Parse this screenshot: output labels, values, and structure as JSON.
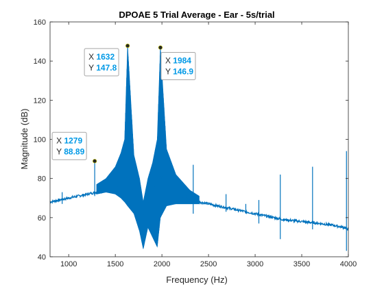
{
  "chart_data": {
    "type": "line",
    "title": "DPOAE 5 Trial Average - Ear - 5s/trial",
    "xlabel": "Frequency (Hz)",
    "ylabel": "Magnitude (dB)",
    "xlim": [
      800,
      4000
    ],
    "ylim": [
      40,
      160
    ],
    "xticks": [
      1000,
      1500,
      2000,
      2500,
      3000,
      3500,
      4000
    ],
    "yticks": [
      40,
      60,
      80,
      100,
      120,
      140,
      160
    ],
    "grid": false,
    "line_color": "#0072BD",
    "series": [
      {
        "baseline": {
          "x": [
            800,
            1000,
            1200,
            1400,
            1500,
            1600,
            1632,
            1700,
            1800,
            1900,
            1984,
            2100,
            2300,
            2500,
            2700,
            2900,
            3100,
            3300,
            3500,
            3700,
            3850,
            3950,
            4000
          ],
          "y": [
            68,
            70,
            72,
            74,
            76,
            80,
            82,
            74,
            60,
            73,
            82,
            75,
            69,
            67,
            65,
            63,
            61,
            59,
            58,
            57,
            56,
            55,
            54
          ]
        },
        "envelope_upper": {
          "x": [
            1300,
            1400,
            1500,
            1560,
            1600,
            1632,
            1700,
            1760,
            1800,
            1850,
            1900,
            1950,
            1984,
            2050,
            2150,
            2300,
            2400
          ],
          "y": [
            77,
            80,
            86,
            93,
            100,
            148,
            92,
            80,
            68,
            80,
            88,
            100,
            147,
            95,
            82,
            74,
            71
          ]
        },
        "envelope_lower": {
          "x": [
            1300,
            1400,
            1500,
            1560,
            1600,
            1632,
            1700,
            1760,
            1800,
            1850,
            1900,
            1950,
            1984,
            2050,
            2150,
            2300,
            2400
          ],
          "y": [
            72,
            73,
            72,
            70,
            68,
            66,
            62,
            53,
            44,
            55,
            50,
            45,
            60,
            66,
            67,
            67,
            67
          ]
        },
        "spikes": [
          {
            "x": 930,
            "base": 69,
            "top": 73,
            "bottom": 67
          },
          {
            "x": 1279,
            "base": 72,
            "top": 88.89,
            "bottom": 71
          },
          {
            "x": 1632,
            "base": 80,
            "top": 147.8,
            "bottom": 66
          },
          {
            "x": 1984,
            "base": 80,
            "top": 146.9,
            "bottom": 60
          },
          {
            "x": 2336,
            "base": 69,
            "top": 87,
            "bottom": 62
          },
          {
            "x": 2688,
            "base": 66,
            "top": 72,
            "bottom": 63
          },
          {
            "x": 2900,
            "base": 64,
            "top": 67,
            "bottom": 62
          },
          {
            "x": 3040,
            "base": 62,
            "top": 69,
            "bottom": 57
          },
          {
            "x": 3270,
            "base": 60,
            "top": 82,
            "bottom": 49
          },
          {
            "x": 3616,
            "base": 58,
            "top": 86,
            "bottom": 54
          },
          {
            "x": 3980,
            "base": 57,
            "top": 94,
            "bottom": 43
          }
        ]
      }
    ],
    "datatips": [
      {
        "x": "1632",
        "y": "147.8",
        "box_at": "left"
      },
      {
        "x": "1984",
        "y": "146.9",
        "box_at": "right"
      },
      {
        "x": "1279",
        "y": "88.89",
        "box_at": "left"
      }
    ],
    "datatip_labels": {
      "x": "X",
      "y": "Y"
    }
  }
}
